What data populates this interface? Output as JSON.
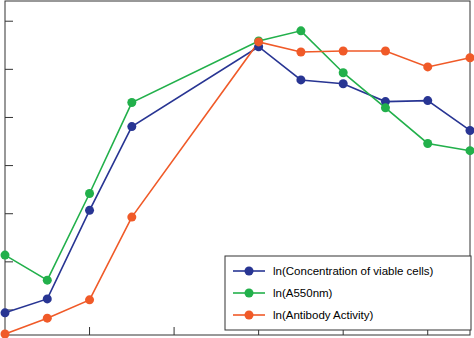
{
  "chart_data": {
    "type": "line",
    "x": [
      0,
      1,
      2,
      3,
      6,
      7,
      8,
      9,
      10,
      11
    ],
    "xlim": [
      0,
      11
    ],
    "xticks": [
      2,
      4,
      6,
      8,
      10
    ],
    "ylim": [
      -0.52,
      6.42
    ],
    "yticks": [
      0,
      1,
      2,
      3,
      4,
      5,
      6
    ],
    "tick_labels": false,
    "grid": false,
    "legend": "lower right",
    "series": [
      {
        "name": "ln(Concentration of viable cells)",
        "color": "#283593",
        "marker": "circle",
        "line_style": "solid",
        "values": [
          -0.06,
          0.23,
          2.07,
          3.81,
          5.47,
          4.78,
          4.7,
          4.33,
          4.35,
          3.73
        ]
      },
      {
        "name": "ln(A550nm)",
        "color": "#22b04b",
        "marker": "circle",
        "line_style": "solid",
        "values": [
          1.14,
          0.62,
          2.42,
          4.31,
          5.59,
          5.8,
          4.93,
          4.2,
          3.46,
          3.31
        ]
      },
      {
        "name": "ln(Antibody Activity)",
        "color": "#f05a28",
        "marker": "circle",
        "line_style": "solid",
        "values": [
          -0.5,
          -0.17,
          0.21,
          1.93,
          5.57,
          5.36,
          5.38,
          5.38,
          5.05,
          5.24
        ]
      }
    ]
  }
}
